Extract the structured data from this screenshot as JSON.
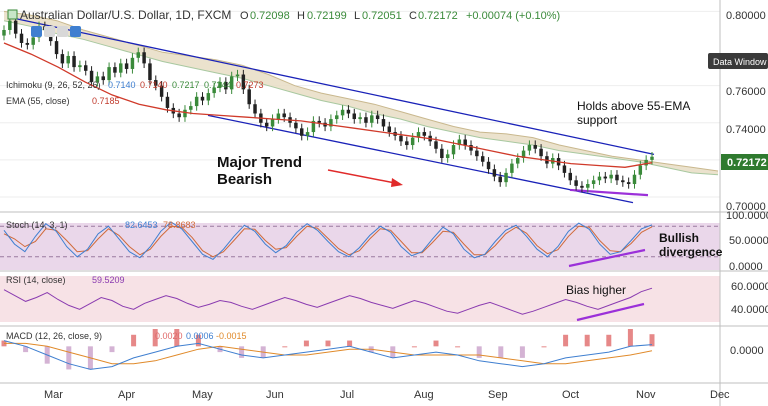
{
  "header": {
    "symbol_title": "Australian Dollar/U.S. Dollar, 1D, FXCM",
    "ohlc": {
      "o_label": "O",
      "o": "0.72098",
      "h_label": "H",
      "h": "0.72199",
      "l_label": "L",
      "l": "0.72051",
      "c_label": "C",
      "c": "0.72172",
      "change": "+0.00074 (+0.10%)"
    },
    "ichimoku_label": "Ichimoku (9, 26, 52, 26)",
    "ichimoku_values": [
      "0.7140",
      "0.7140",
      "0.7217",
      "0.7244",
      "0.7273"
    ],
    "ema_label": "EMA (55, close)",
    "ema_value": "0.7185"
  },
  "buttons": {
    "data_window": "Data Window"
  },
  "annotations": {
    "holds_line1": "Holds above 55-EMA",
    "holds_line2": "support",
    "trend_line1": "Major Trend",
    "trend_line2": "Bearish",
    "bullish_line1": "Bullish",
    "bullish_line2": "divergence",
    "bias": "Bias higher"
  },
  "colors": {
    "up": "#3a8a3a",
    "down": "#222222",
    "ema": "#d03a2a",
    "channel": "#1a22b8",
    "cloud": "#e8ddc4",
    "highlight": "#9b30d9",
    "stoch_k": "#3f7fd0",
    "stoch_d": "#d06a3a",
    "rsi": "#8a3bb0",
    "macd": "#3f7fd0",
    "signal": "#e08a2a",
    "hist_up": "#e06a6a",
    "price_tag": "#2f7a2f",
    "arrow": "#e02a2a"
  },
  "chart_data": [
    {
      "name": "price",
      "type": "candlestick",
      "title": "Australian Dollar/U.S. Dollar, 1D, FXCM",
      "ylim": [
        0.693,
        0.804
      ],
      "y_ticks": [
        "0.80000",
        "0.78000",
        "0.76000",
        "0.74000",
        "0.72000",
        "0.70000"
      ],
      "last_price": "0.72172",
      "x_ticks": [
        "Mar",
        "Apr",
        "May",
        "Jun",
        "Jul",
        "Aug",
        "Sep",
        "Oct",
        "Nov",
        "Dec"
      ],
      "closes": [
        0.79,
        0.795,
        0.788,
        0.783,
        0.782,
        0.786,
        0.792,
        0.79,
        0.784,
        0.777,
        0.772,
        0.776,
        0.77,
        0.771,
        0.768,
        0.762,
        0.765,
        0.763,
        0.77,
        0.767,
        0.772,
        0.769,
        0.775,
        0.778,
        0.772,
        0.763,
        0.76,
        0.754,
        0.748,
        0.745,
        0.743,
        0.747,
        0.749,
        0.754,
        0.752,
        0.756,
        0.759,
        0.762,
        0.758,
        0.765,
        0.766,
        0.758,
        0.75,
        0.745,
        0.74,
        0.738,
        0.742,
        0.745,
        0.743,
        0.74,
        0.737,
        0.733,
        0.735,
        0.741,
        0.74,
        0.738,
        0.742,
        0.744,
        0.747,
        0.745,
        0.742,
        0.743,
        0.74,
        0.744,
        0.742,
        0.738,
        0.735,
        0.733,
        0.73,
        0.728,
        0.732,
        0.735,
        0.733,
        0.73,
        0.726,
        0.721,
        0.723,
        0.728,
        0.731,
        0.728,
        0.725,
        0.722,
        0.719,
        0.715,
        0.711,
        0.708,
        0.713,
        0.718,
        0.721,
        0.725,
        0.728,
        0.726,
        0.722,
        0.718,
        0.721,
        0.717,
        0.713,
        0.709,
        0.706,
        0.705,
        0.707,
        0.709,
        0.711,
        0.71,
        0.712,
        0.709,
        0.708,
        0.707,
        0.712,
        0.717,
        0.72,
        0.72172
      ],
      "ema55": [
        0.783,
        0.777,
        0.77,
        0.762,
        0.755,
        0.75,
        0.747,
        0.745,
        0.744,
        0.743,
        0.742,
        0.741,
        0.739,
        0.737,
        0.735,
        0.733,
        0.731,
        0.728,
        0.725,
        0.722,
        0.72,
        0.718,
        0.717,
        0.716,
        0.7185
      ],
      "cloud_upper": [
        0.8,
        0.798,
        0.795,
        0.79,
        0.786,
        0.782,
        0.778,
        0.776,
        0.774,
        0.771,
        0.766,
        0.76,
        0.756,
        0.753,
        0.75,
        0.746,
        0.742,
        0.738,
        0.735,
        0.734,
        0.732,
        0.728,
        0.725,
        0.722,
        0.72,
        0.718,
        0.716,
        0.714
      ],
      "cloud_lower": [
        0.795,
        0.792,
        0.788,
        0.785,
        0.781,
        0.777,
        0.773,
        0.77,
        0.767,
        0.764,
        0.76,
        0.756,
        0.752,
        0.749,
        0.745,
        0.742,
        0.738,
        0.735,
        0.732,
        0.73,
        0.728,
        0.725,
        0.723,
        0.721,
        0.719,
        0.716,
        0.713,
        0.712
      ],
      "channel_upper": {
        "start": 0.797,
        "end": 0.723
      },
      "channel_lower": {
        "start": 0.744,
        "end": 0.697
      }
    },
    {
      "name": "stochastic",
      "type": "line",
      "label": "Stoch (14, 3, 1)",
      "value_labels": [
        "82.6453",
        "78.8683"
      ],
      "ylim": [
        0,
        100
      ],
      "y_ticks": [
        "100.0000",
        "50.0000",
        "0.0000"
      ],
      "series": [
        {
          "name": "%K",
          "values": [
            72,
            45,
            30,
            60,
            85,
            70,
            40,
            20,
            35,
            65,
            80,
            55,
            30,
            18,
            40,
            70,
            88,
            75,
            50,
            25,
            15,
            35,
            60,
            82,
            70,
            45,
            28,
            42,
            68,
            85,
            72,
            50,
            30,
            20,
            38,
            62,
            80,
            68,
            40,
            22,
            30,
            55,
            78,
            65,
            35,
            18,
            25,
            50,
            72,
            82,
            60,
            35,
            20,
            40,
            70,
            86,
            74,
            45,
            25,
            30,
            52,
            75,
            82.6453
          ]
        },
        {
          "name": "%D",
          "values": [
            65,
            55,
            40,
            50,
            75,
            72,
            52,
            30,
            32,
            55,
            75,
            62,
            40,
            24,
            35,
            60,
            80,
            78,
            58,
            32,
            20,
            30,
            52,
            75,
            74,
            52,
            35,
            38,
            60,
            80,
            76,
            56,
            36,
            24,
            32,
            55,
            75,
            72,
            50,
            28,
            28,
            48,
            70,
            68,
            45,
            24,
            24,
            42,
            65,
            78,
            66,
            42,
            26,
            34,
            60,
            80,
            78,
            52,
            32,
            30,
            46,
            68,
            78.8683
          ]
        }
      ]
    },
    {
      "name": "rsi",
      "type": "line",
      "label": "RSI (14, close)",
      "value_labels": [
        "59.5209"
      ],
      "ylim": [
        25,
        72
      ],
      "y_ticks": [
        "60.0000",
        "40.0000"
      ],
      "series": [
        {
          "name": "RSI",
          "values": [
            58,
            52,
            46,
            50,
            55,
            48,
            42,
            38,
            44,
            50,
            47,
            41,
            38,
            44,
            48,
            52,
            49,
            44,
            40,
            43,
            47,
            45,
            41,
            38,
            42,
            46,
            50,
            47,
            43,
            40,
            44,
            48,
            52,
            49,
            45,
            42,
            39,
            43,
            47,
            44,
            40,
            36,
            34,
            38,
            42,
            45,
            41,
            37,
            33,
            36,
            40,
            44,
            48,
            45,
            41,
            38,
            42,
            46,
            50,
            56,
            59.5209
          ]
        }
      ]
    },
    {
      "name": "macd",
      "type": "line",
      "label": "MACD (12, 26, close, 9)",
      "value_labels": [
        "0.0020",
        "0.0006",
        "-0.0015"
      ],
      "ylim": [
        -0.012,
        0.006
      ],
      "y_ticks": [
        "0.0000"
      ],
      "series": [
        {
          "name": "MACD",
          "values": [
            0.002,
            0.0,
            -0.003,
            -0.006,
            -0.008,
            -0.007,
            -0.004,
            -0.002,
            0.0,
            0.001,
            -0.001,
            -0.003,
            -0.004,
            -0.003,
            -0.002,
            -0.001,
            0.0,
            -0.002,
            -0.004,
            -0.003,
            -0.002,
            -0.003,
            -0.005,
            -0.006,
            -0.007,
            -0.006,
            -0.004,
            -0.003,
            -0.002,
            0.0,
            0.0006
          ]
        },
        {
          "name": "Signal",
          "values": [
            0.001,
            0.001,
            0.0,
            -0.002,
            -0.004,
            -0.006,
            -0.006,
            -0.005,
            -0.003,
            -0.001,
            0.0,
            -0.001,
            -0.002,
            -0.003,
            -0.003,
            -0.002,
            -0.001,
            -0.001,
            -0.002,
            -0.003,
            -0.003,
            -0.003,
            -0.003,
            -0.004,
            -0.005,
            -0.006,
            -0.006,
            -0.005,
            -0.004,
            -0.003,
            -0.0015
          ]
        }
      ]
    }
  ]
}
